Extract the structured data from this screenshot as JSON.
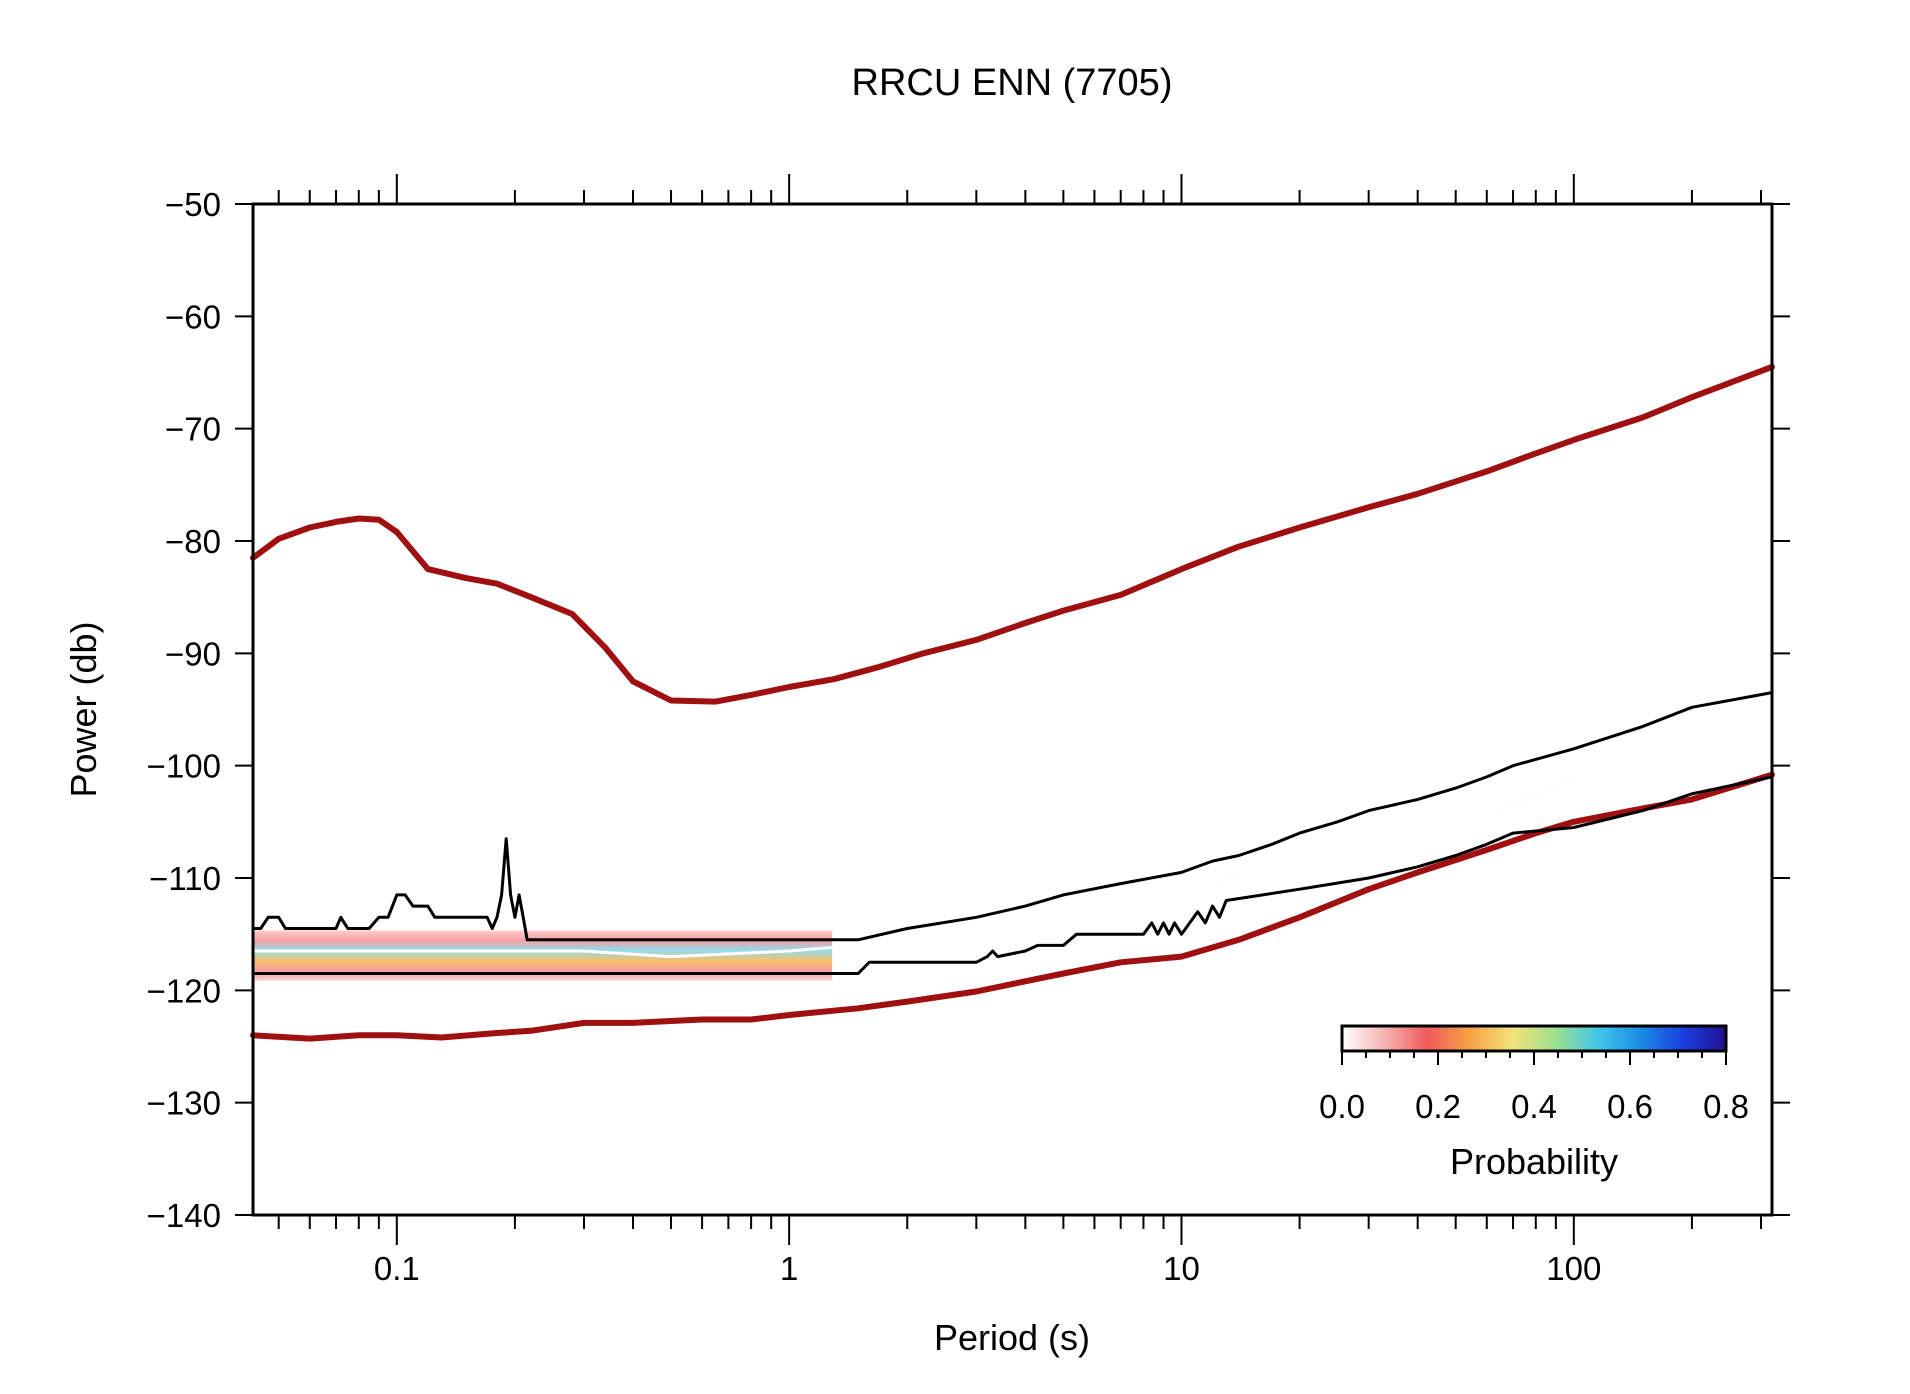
{
  "chart_data": {
    "type": "heatmap",
    "title": "RRCU ENN (7705)",
    "xlabel": "Period (s)",
    "ylabel": "Power (db)",
    "x_scale": "log",
    "xlim": [
      0.043,
      320
    ],
    "ylim": [
      -140,
      -50
    ],
    "x_ticks": [
      {
        "value": 0.1,
        "label": "0.1"
      },
      {
        "value": 1,
        "label": "1"
      },
      {
        "value": 10,
        "label": "10"
      },
      {
        "value": 100,
        "label": "100"
      }
    ],
    "y_ticks": [
      {
        "value": -50,
        "label": "−50"
      },
      {
        "value": -60,
        "label": "−60"
      },
      {
        "value": -70,
        "label": "−70"
      },
      {
        "value": -80,
        "label": "−80"
      },
      {
        "value": -90,
        "label": "−90"
      },
      {
        "value": -100,
        "label": "−100"
      },
      {
        "value": -110,
        "label": "−110"
      },
      {
        "value": -120,
        "label": "−120"
      },
      {
        "value": -130,
        "label": "−130"
      },
      {
        "value": -140,
        "label": "−140"
      }
    ],
    "colorbar": {
      "label": "Probability",
      "range": [
        0,
        0.8
      ],
      "ticks": [
        {
          "value": 0.0,
          "label": "0.0"
        },
        {
          "value": 0.2,
          "label": "0.2"
        },
        {
          "value": 0.4,
          "label": "0.4"
        },
        {
          "value": 0.6,
          "label": "0.6"
        },
        {
          "value": 0.8,
          "label": "0.8"
        }
      ],
      "colors": [
        "#ffffff",
        "#f6b3b3",
        "#ee5a5a",
        "#f7a244",
        "#f2e27a",
        "#9ee08f",
        "#40c7ea",
        "#1a8be4",
        "#1a3fe0",
        "#221090"
      ]
    },
    "series": [
      {
        "role": "high-noise-model",
        "color": "#a01010",
        "x": [
          0.043,
          0.05,
          0.06,
          0.07,
          0.08,
          0.09,
          0.1,
          0.12,
          0.15,
          0.18,
          0.22,
          0.28,
          0.34,
          0.4,
          0.5,
          0.65,
          0.8,
          1,
          1.3,
          1.7,
          2.2,
          3,
          4,
          5,
          7,
          10,
          14,
          20,
          30,
          40,
          60,
          80,
          100,
          150,
          200,
          320
        ],
        "y": [
          -81.5,
          -79.8,
          -78.8,
          -78.3,
          -78.0,
          -78.1,
          -79.2,
          -82.5,
          -83.3,
          -83.8,
          -85.0,
          -86.5,
          -89.5,
          -92.5,
          -94.2,
          -94.3,
          -93.7,
          -93.0,
          -92.3,
          -91.2,
          -90.0,
          -88.8,
          -87.3,
          -86.2,
          -84.8,
          -82.5,
          -80.5,
          -78.8,
          -77.0,
          -75.8,
          -73.8,
          -72.2,
          -71.0,
          -69.0,
          -67.2,
          -64.5
        ]
      },
      {
        "role": "low-noise-model",
        "color": "#a01010",
        "x": [
          0.043,
          0.06,
          0.08,
          0.1,
          0.13,
          0.18,
          0.22,
          0.3,
          0.4,
          0.6,
          0.8,
          1,
          1.5,
          2,
          3,
          4,
          5,
          7,
          10,
          14,
          20,
          30,
          40,
          60,
          80,
          100,
          150,
          200,
          320
        ],
        "y": [
          -124.0,
          -124.3,
          -124.0,
          -124.0,
          -124.2,
          -123.8,
          -123.6,
          -122.9,
          -122.9,
          -122.6,
          -122.6,
          -122.2,
          -121.6,
          -121.0,
          -120.1,
          -119.2,
          -118.5,
          -117.5,
          -117.0,
          -115.5,
          -113.5,
          -111.0,
          -109.5,
          -107.5,
          -106.0,
          -105.0,
          -103.8,
          -103.0,
          -100.8
        ]
      },
      {
        "role": "percentile-high",
        "color": "#000000",
        "x": [
          0.043,
          0.045,
          0.047,
          0.05,
          0.052,
          0.055,
          0.07,
          0.072,
          0.075,
          0.085,
          0.09,
          0.095,
          0.1,
          0.105,
          0.11,
          0.12,
          0.125,
          0.13,
          0.17,
          0.175,
          0.18,
          0.185,
          0.19,
          0.195,
          0.2,
          0.205,
          0.21,
          0.215,
          0.23,
          0.5,
          1.5,
          2,
          3,
          4,
          5,
          7,
          10,
          12,
          14,
          17,
          20,
          25,
          30,
          40,
          50,
          60,
          70,
          100,
          150,
          200,
          320
        ],
        "y": [
          -114.5,
          -114.5,
          -113.5,
          -113.5,
          -114.5,
          -114.5,
          -114.5,
          -113.5,
          -114.5,
          -114.5,
          -113.5,
          -113.5,
          -111.5,
          -111.5,
          -112.5,
          -112.5,
          -113.5,
          -113.5,
          -113.5,
          -114.5,
          -113.5,
          -111.5,
          -106.5,
          -111.5,
          -113.5,
          -111.5,
          -113.5,
          -115.5,
          -115.5,
          -115.5,
          -115.5,
          -114.5,
          -113.5,
          -112.5,
          -111.5,
          -110.5,
          -109.5,
          -108.5,
          -108.0,
          -107.0,
          -106.0,
          -105.0,
          -104.0,
          -103.0,
          -102.0,
          -101.0,
          -100.0,
          -98.5,
          -96.5,
          -94.8,
          -93.5
        ]
      },
      {
        "role": "percentile-low",
        "color": "#000000",
        "x": [
          0.043,
          1.5,
          1.6,
          2,
          3,
          3.2,
          3.3,
          3.4,
          4,
          4.3,
          4.5,
          4.7,
          5,
          5.4,
          5.6,
          8,
          8.4,
          8.7,
          9,
          9.3,
          9.6,
          10,
          11,
          11.5,
          12,
          12.5,
          13,
          20,
          30,
          40,
          50,
          60,
          70,
          100,
          150,
          200,
          320
        ],
        "y": [
          -118.5,
          -118.5,
          -117.5,
          -117.5,
          -117.5,
          -117.0,
          -116.5,
          -117.0,
          -116.5,
          -116.0,
          -116.0,
          -116.0,
          -116.0,
          -115.0,
          -115.0,
          -115.0,
          -114.0,
          -115.0,
          -114.0,
          -115.0,
          -114.0,
          -115.0,
          -113.0,
          -114.0,
          -112.5,
          -113.5,
          -112.0,
          -111.0,
          -110.0,
          -109.0,
          -108.0,
          -107.0,
          -106.0,
          -105.5,
          -104.0,
          -102.5,
          -101.0
        ]
      },
      {
        "role": "mode",
        "color": "#ffffff",
        "x": [
          0.043,
          0.3,
          0.5,
          1,
          1.5,
          2,
          2.5,
          3,
          4,
          5,
          7,
          10,
          12,
          14,
          20,
          30,
          40,
          60,
          80,
          100,
          150,
          200,
          320
        ],
        "y": [
          -116.5,
          -116.5,
          -117.0,
          -116.5,
          -116.0,
          -115.5,
          -115.0,
          -114.5,
          -113.5,
          -113.0,
          -112.0,
          -111.0,
          -110.5,
          -109.5,
          -108.5,
          -107.5,
          -106.5,
          -104.5,
          -102.5,
          -101.0,
          -99.5,
          -98.5,
          -96.0
        ]
      }
    ]
  }
}
